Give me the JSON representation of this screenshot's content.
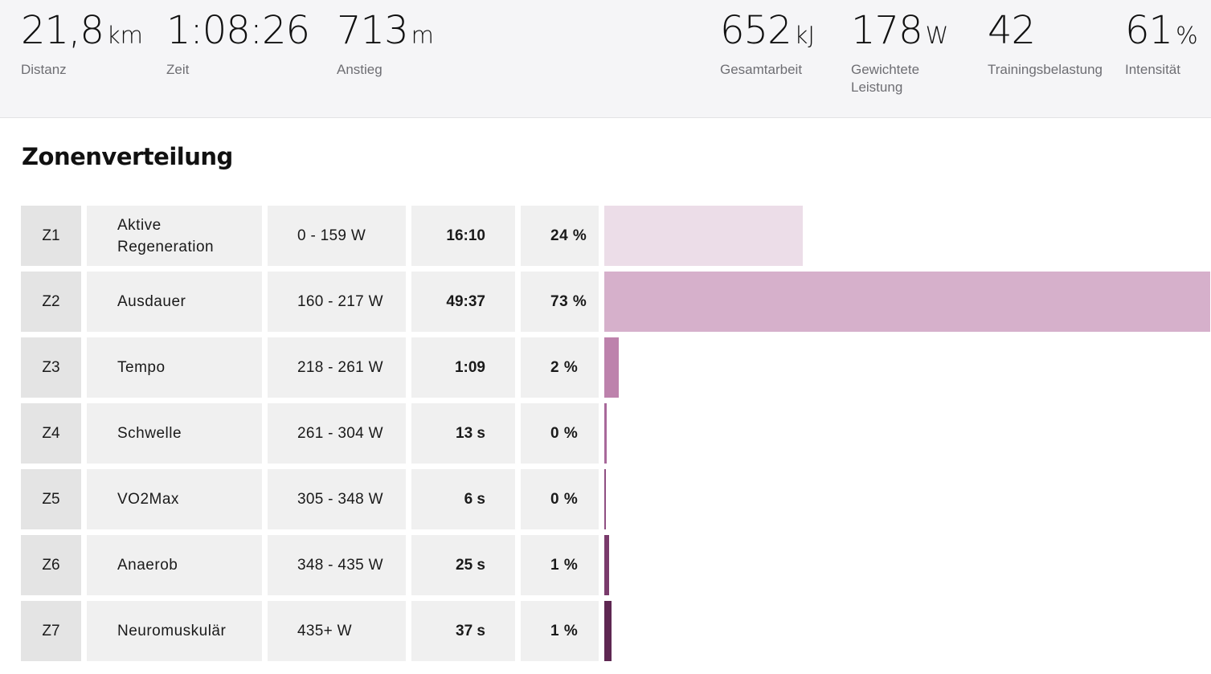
{
  "stats_left": [
    {
      "value": "21,8",
      "unit": "km",
      "label": "Distanz"
    },
    {
      "value": "1:08:26",
      "unit": "",
      "label": "Zeit"
    },
    {
      "value": "713",
      "unit": "m",
      "label": "Anstieg"
    }
  ],
  "stats_right": [
    {
      "value": "652",
      "unit": "kJ",
      "label": "Gesamtarbeit"
    },
    {
      "value": "178",
      "unit": "W",
      "label": "Gewichtete Leistung"
    },
    {
      "value": "42",
      "unit": "",
      "label": "Trainingsbelastung"
    },
    {
      "value": "61",
      "unit": "%",
      "label": "Intensität"
    }
  ],
  "section_title": "Zonenverteilung",
  "zones": [
    {
      "id": "Z1",
      "name": "Aktive Regeneration",
      "range": "0 - 159 W",
      "time": "16:10",
      "percent": "24 %",
      "fraction": 0.327,
      "color": "#ecdde8"
    },
    {
      "id": "Z2",
      "name": "Ausdauer",
      "range": "160 - 217 W",
      "time": "49:37",
      "percent": "73 %",
      "fraction": 1.0,
      "color": "#d6b0cb"
    },
    {
      "id": "Z3",
      "name": "Tempo",
      "range": "218 - 261 W",
      "time": "1:09",
      "percent": "2 %",
      "fraction": 0.024,
      "color": "#bd82ac"
    },
    {
      "id": "Z4",
      "name": "Schwelle",
      "range": "261 - 304 W",
      "time": "13 s",
      "percent": "0 %",
      "fraction": 0.004,
      "color": "#a8689a"
    },
    {
      "id": "Z5",
      "name": "VO2Max",
      "range": "305 - 348 W",
      "time": "6 s",
      "percent": "0 %",
      "fraction": 0.003,
      "color": "#8f4f82"
    },
    {
      "id": "Z6",
      "name": "Anaerob",
      "range": "348 - 435 W",
      "time": "25 s",
      "percent": "1 %",
      "fraction": 0.008,
      "color": "#7a3b6c"
    },
    {
      "id": "Z7",
      "name": "Neuromuskulär",
      "range": "435+ W",
      "time": "37 s",
      "percent": "1 %",
      "fraction": 0.012,
      "color": "#5e2752"
    }
  ]
}
